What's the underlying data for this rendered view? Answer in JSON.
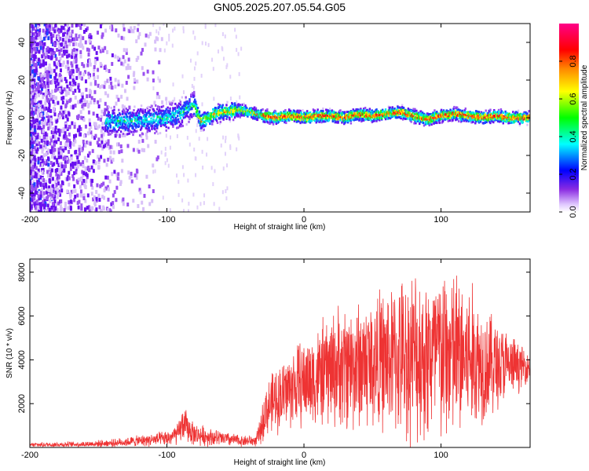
{
  "title": "GN05.2025.207.05.54.G05",
  "chart_data": [
    {
      "type": "heatmap",
      "xlabel": "Height of straight line (km)",
      "ylabel": "Frequency (Hz)",
      "xlim": [
        -200,
        165
      ],
      "ylim": [
        -50,
        50
      ],
      "x_ticks": [
        -200,
        -100,
        0,
        100
      ],
      "y_ticks": [
        -40,
        -20,
        0,
        20,
        40
      ],
      "colorbar": {
        "label": "Normalized spectral amplitude",
        "range": [
          0,
          1
        ],
        "ticks": [
          0.0,
          0.2,
          0.4,
          0.6,
          0.8
        ],
        "tick_labels": [
          "0.0",
          "0.2",
          "0.4",
          "0.6",
          "0.8"
        ],
        "colormap": "hsv-rainbow: white, purple, blue, cyan, green, yellow, orange, red, magenta"
      },
      "ridge": {
        "x": [
          -125,
          -110,
          -100,
          -90,
          -85,
          -80,
          -75,
          -70,
          -65,
          -60,
          -55,
          -50,
          -45,
          -40,
          -35,
          -30,
          -20,
          -10,
          0,
          10,
          20,
          30,
          40,
          50,
          60,
          70,
          80,
          90,
          100,
          110,
          120,
          130,
          140,
          150,
          160,
          165
        ],
        "y": [
          -2,
          -1,
          0,
          2,
          5,
          7,
          -2,
          0,
          2,
          3,
          3,
          4,
          4,
          3,
          2,
          1,
          0,
          1,
          0,
          1,
          1,
          0,
          2,
          1,
          2,
          3,
          1,
          -1,
          1,
          2,
          1,
          0,
          1,
          0,
          0,
          0
        ]
      }
    },
    {
      "type": "line",
      "xlabel": "Height of straight line (km)",
      "ylabel": "SNR (10 * v/v)",
      "xlim": [
        -200,
        165
      ],
      "ylim": [
        0,
        8600
      ],
      "x_ticks": [
        -200,
        -100,
        0,
        100
      ],
      "y_ticks": [
        2000,
        4000,
        6000,
        8000
      ],
      "series": [
        {
          "color": "#ee3333",
          "envelope": {
            "x": [
              -200,
              -160,
              -140,
              -120,
              -100,
              -92,
              -88,
              -85,
              -80,
              -60,
              -45,
              -35,
              -32,
              -28,
              -20,
              -10,
              0,
              10,
              20,
              30,
              40,
              50,
              60,
              70,
              80,
              90,
              100,
              110,
              120,
              130,
              140,
              150,
              160,
              165
            ],
            "mean": [
              120,
              150,
              200,
              300,
              400,
              600,
              1100,
              900,
              600,
              400,
              300,
              300,
              700,
              1700,
              2200,
              2700,
              3000,
              3200,
              3600,
              3700,
              3800,
              3900,
              4000,
              4100,
              4200,
              4200,
              4200,
              4200,
              4100,
              3900,
              3800,
              3700,
              3700,
              3700
            ],
            "amplitude": [
              100,
              130,
              170,
              250,
              350,
              500,
              800,
              700,
              500,
              350,
              250,
              250,
              600,
              1200,
              1500,
              1800,
              2000,
              2300,
              2600,
              2900,
              3000,
              3100,
              3200,
              3500,
              3900,
              4000,
              4200,
              4000,
              3600,
              2800,
              2200,
              1500,
              900,
              600
            ]
          }
        }
      ]
    }
  ]
}
